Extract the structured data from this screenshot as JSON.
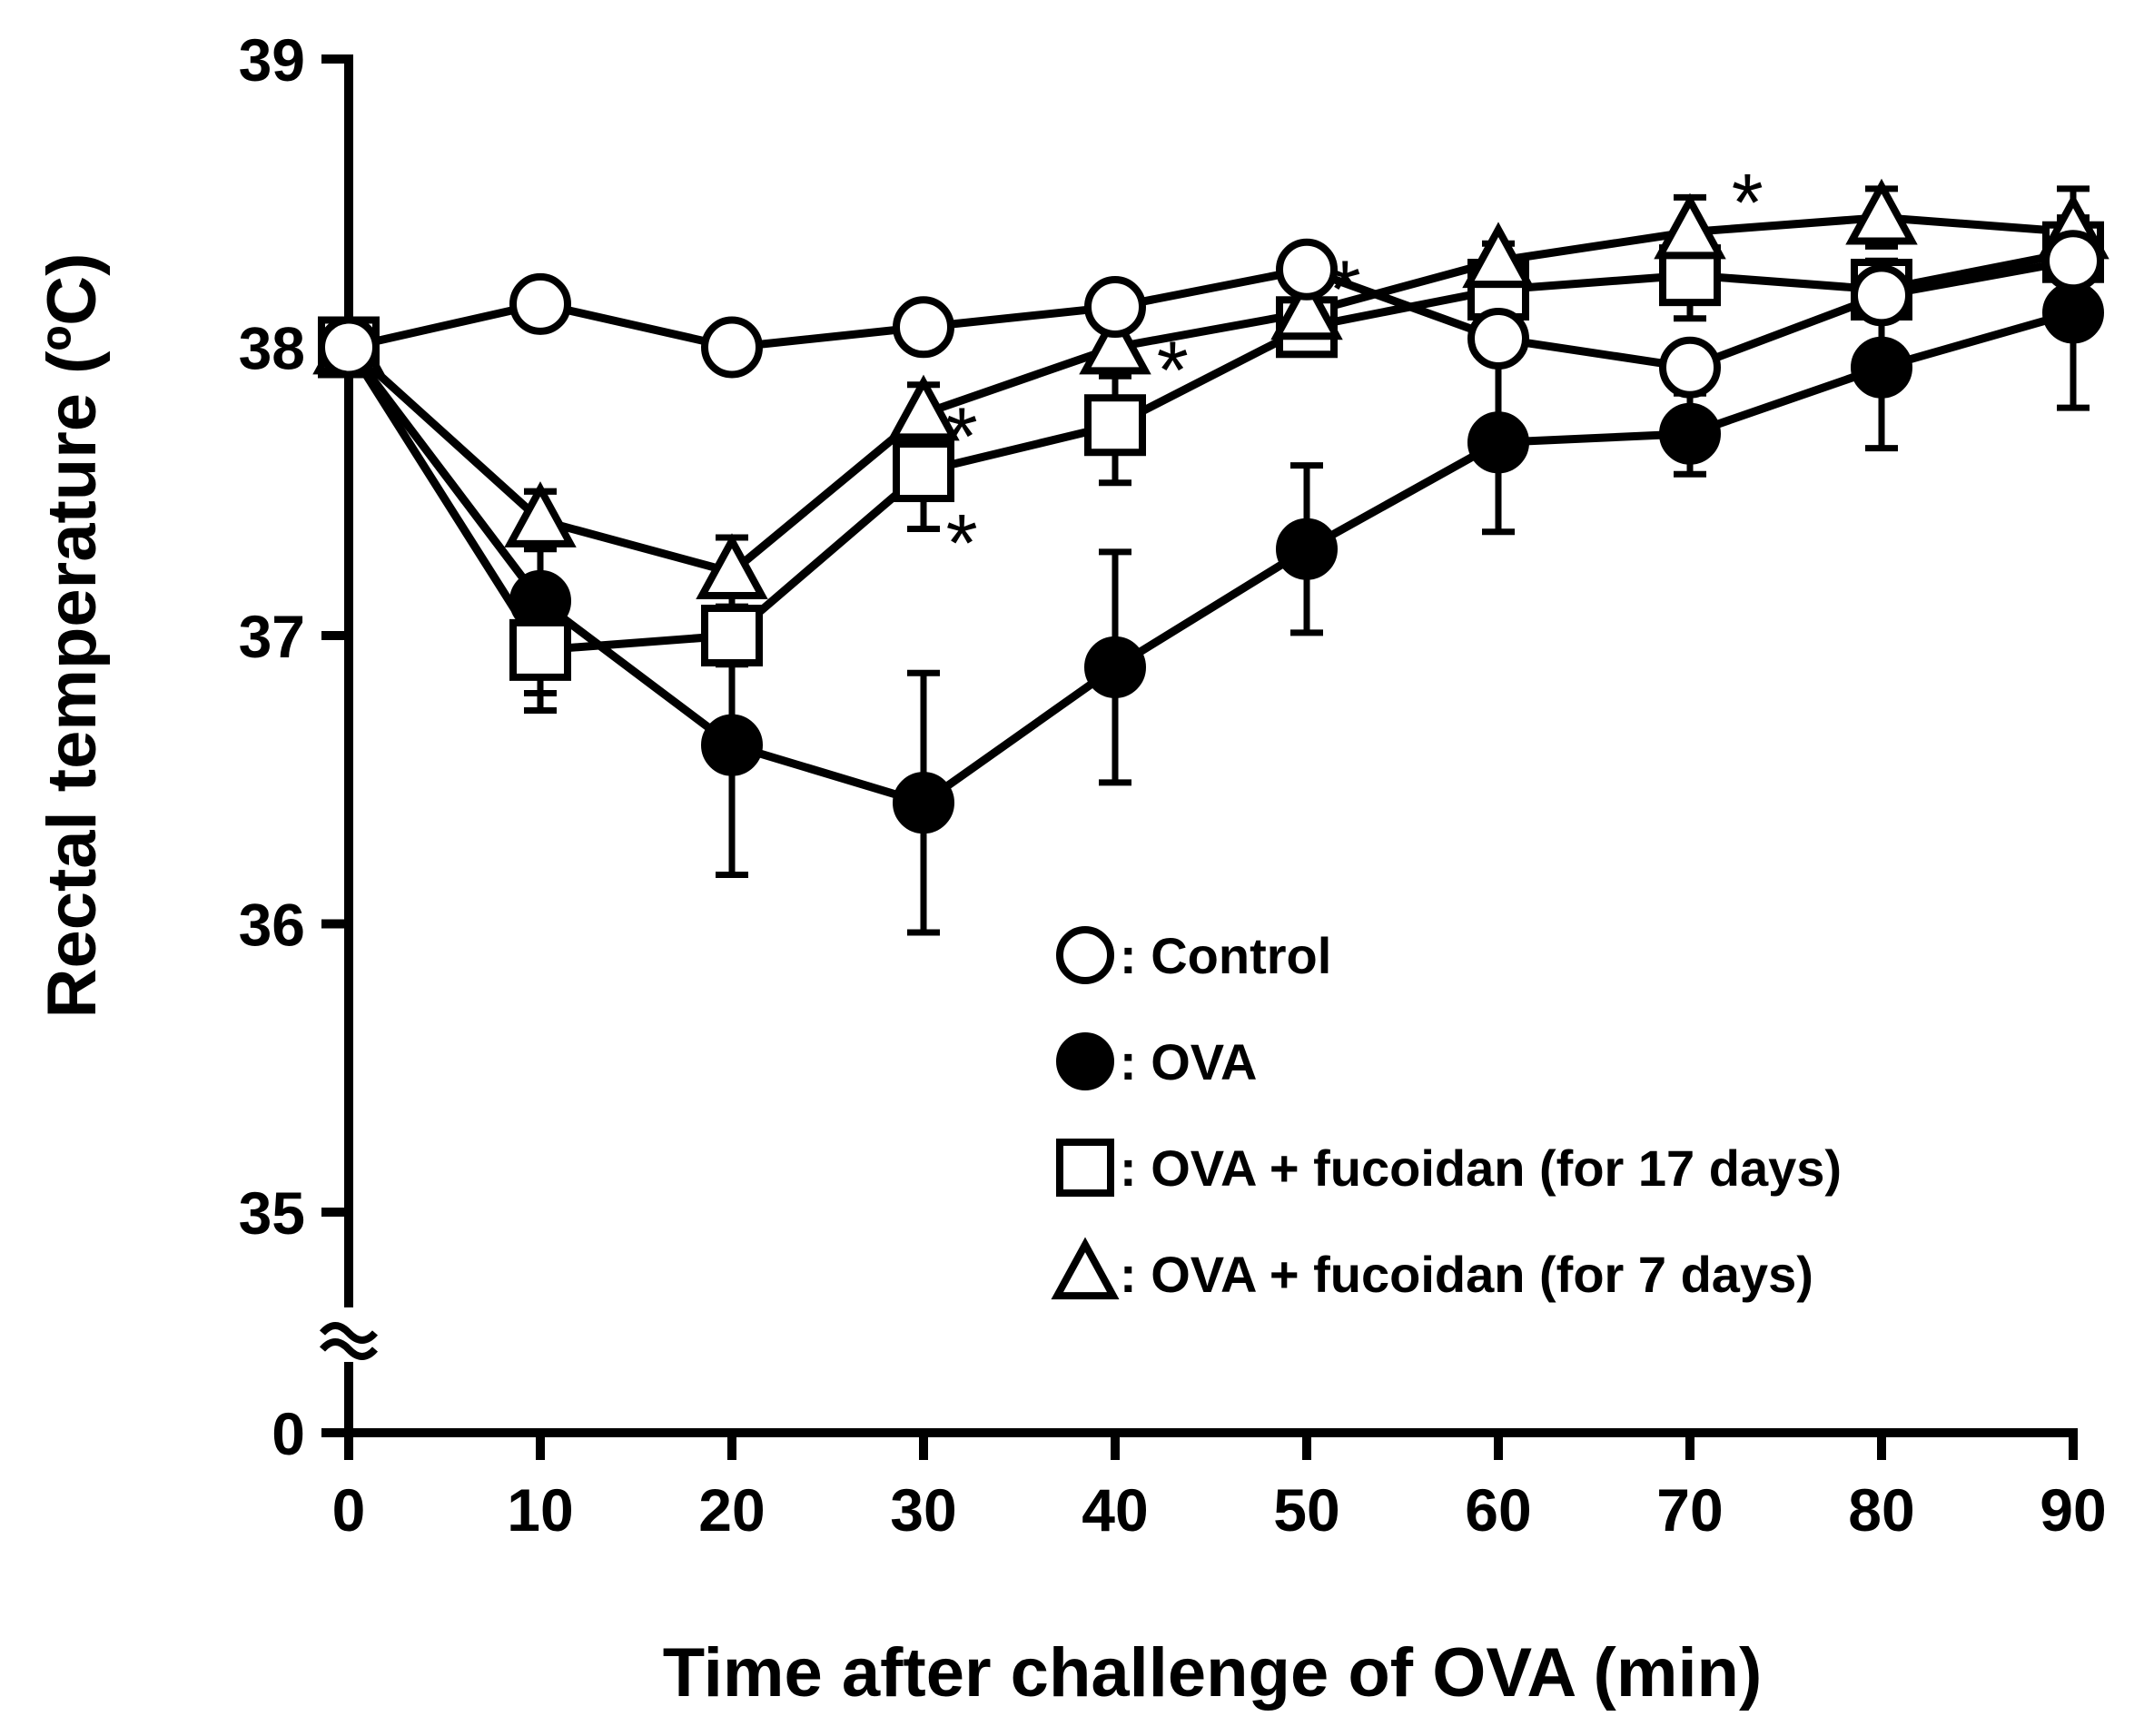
{
  "chart_data": {
    "type": "line",
    "xlabel": "Time after challenge of OVA (min)",
    "ylabel": "Rectal temperature (ºC)",
    "x": [
      0,
      10,
      20,
      30,
      40,
      50,
      60,
      70,
      80,
      90
    ],
    "xlim": [
      0,
      90
    ],
    "ylim": [
      35,
      39
    ],
    "axis_break": {
      "between": [
        0,
        35
      ],
      "break_symbol": "≈",
      "lower_tick": 0
    },
    "y_ticks": [
      39,
      38,
      37,
      36,
      35,
      0
    ],
    "x_ticks": [
      0,
      10,
      20,
      30,
      40,
      50,
      60,
      70,
      80,
      90
    ],
    "grid": false,
    "legend_position": "bottom-right inside plot",
    "series": [
      {
        "label": ": Control",
        "marker": "open-circle",
        "values": [
          38.0,
          38.15,
          38.0,
          38.07,
          38.14,
          38.27,
          38.03,
          37.93,
          38.18,
          38.3
        ],
        "error": [
          0,
          0.05,
          0.04,
          0.04,
          0.05,
          0.05,
          0.05,
          0.05,
          0.06,
          0.05
        ]
      },
      {
        "label": ": OVA",
        "marker": "filled-circle",
        "values": [
          38.0,
          37.12,
          36.62,
          36.42,
          36.89,
          37.3,
          37.67,
          37.7,
          37.93,
          38.12
        ],
        "error": [
          0,
          0.38,
          0.45,
          0.45,
          0.4,
          0.29,
          0.31,
          0.14,
          0.28,
          0.33
        ]
      },
      {
        "label": ": OVA + fucoidan (for 17 days)",
        "marker": "open-square",
        "values": [
          38.0,
          36.95,
          37.0,
          37.57,
          37.73,
          38.07,
          38.2,
          38.25,
          38.2,
          38.33
        ],
        "error": [
          0,
          0.15,
          0.1,
          0.2,
          0.2,
          0.06,
          0.06,
          0.15,
          0.1,
          0.1
        ]
      },
      {
        "label": ": OVA + fucoidan (for 7 days)",
        "marker": "open-triangle",
        "values": [
          38.0,
          37.4,
          37.22,
          37.77,
          38.0,
          38.12,
          38.3,
          38.4,
          38.45,
          38.4
        ],
        "error": [
          0,
          0.1,
          0.12,
          0.1,
          0.1,
          0.08,
          0.06,
          0.12,
          0.1,
          0.15
        ]
      }
    ],
    "annotations": [
      {
        "text": "*",
        "x": 52,
        "y": 38.23
      },
      {
        "text": "*",
        "x": 32,
        "y": 37.72
      },
      {
        "text": "*",
        "x": 32,
        "y": 37.35
      },
      {
        "text": "*",
        "x": 43,
        "y": 37.95
      },
      {
        "text": "*",
        "x": 73,
        "y": 38.53
      }
    ]
  }
}
